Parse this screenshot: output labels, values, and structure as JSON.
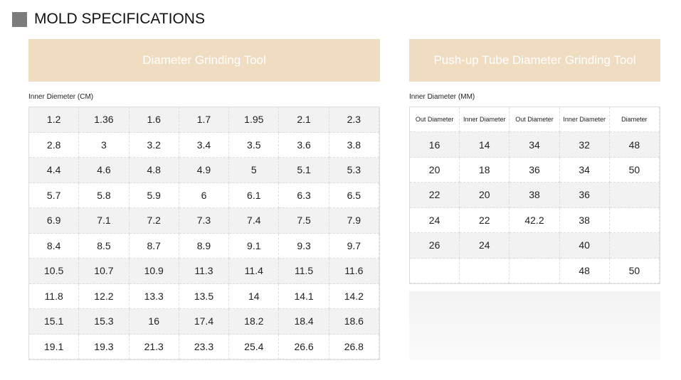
{
  "header": {
    "title": "MOLD SPECIFICATIONS"
  },
  "left": {
    "banner": "Diameter Grinding Tool",
    "label": "Inner Diemeter (CM)",
    "table": {
      "rows": [
        [
          1.2,
          1.36,
          1.6,
          1.7,
          1.95,
          2.1,
          2.3
        ],
        [
          2.8,
          3,
          3.2,
          3.4,
          3.5,
          3.6,
          3.8
        ],
        [
          4.4,
          4.6,
          4.8,
          4.9,
          5,
          5.1,
          5.3
        ],
        [
          5.7,
          5.8,
          5.9,
          6,
          6.1,
          6.3,
          6.5
        ],
        [
          6.9,
          7.1,
          7.2,
          7.3,
          7.4,
          7.5,
          7.9
        ],
        [
          8.4,
          8.5,
          8.7,
          8.9,
          9.1,
          9.3,
          9.7
        ],
        [
          10.5,
          10.7,
          10.9,
          11.3,
          11.4,
          11.5,
          11.6
        ],
        [
          11.8,
          12.2,
          13.3,
          13.5,
          14,
          14.1,
          14.2
        ],
        [
          15.1,
          15.3,
          16,
          17.4,
          18.2,
          18.4,
          18.6
        ],
        [
          19.1,
          19.3,
          21.3,
          23.3,
          25.4,
          26.6,
          26.8
        ]
      ]
    }
  },
  "right": {
    "banner": "Push-up Tube Diameter Grinding Tool",
    "label": "Inner Diameter (MM)",
    "table": {
      "columns": [
        "Out Diameter",
        "Inner Diameter",
        "Out Diameter",
        "Inner Diameter",
        "Diameter"
      ],
      "rows": [
        [
          16,
          14,
          34,
          32,
          48
        ],
        [
          20,
          18,
          36,
          34,
          50
        ],
        [
          22,
          20,
          38,
          36,
          null
        ],
        [
          24,
          22,
          42.2,
          38,
          null
        ],
        [
          26,
          24,
          null,
          40,
          null
        ],
        [
          null,
          null,
          null,
          48,
          50
        ]
      ]
    }
  }
}
